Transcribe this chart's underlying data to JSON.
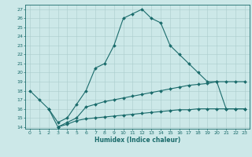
{
  "title": "",
  "xlabel": "Humidex (Indice chaleur)",
  "background_color": "#cce8e8",
  "grid_color": "#aacccc",
  "line_color": "#1a6b6b",
  "xlim": [
    -0.5,
    23.5
  ],
  "ylim": [
    13.8,
    27.5
  ],
  "yticks": [
    14,
    15,
    16,
    17,
    18,
    19,
    20,
    21,
    22,
    23,
    24,
    25,
    26,
    27
  ],
  "xticks": [
    0,
    1,
    2,
    3,
    4,
    5,
    6,
    7,
    8,
    9,
    10,
    11,
    12,
    13,
    14,
    15,
    16,
    17,
    18,
    19,
    20,
    21,
    22,
    23
  ],
  "curve1_x": [
    0,
    1,
    2,
    3,
    4,
    5,
    6,
    7,
    8,
    9,
    10,
    11,
    12,
    13,
    14,
    15,
    16,
    17,
    18,
    19,
    20,
    21,
    22,
    23
  ],
  "curve1_y": [
    18,
    17,
    16,
    14.5,
    15,
    16.5,
    18,
    20.5,
    21,
    23,
    26,
    26.5,
    27,
    26,
    25.5,
    23,
    22,
    21,
    20,
    19,
    19,
    16,
    16,
    16
  ],
  "curve2_x": [
    2,
    3,
    4,
    5,
    6,
    7,
    8,
    9,
    10,
    11,
    12,
    13,
    14,
    15,
    16,
    17,
    18,
    19,
    20,
    21,
    22,
    23
  ],
  "curve2_y": [
    16,
    14,
    14.5,
    15,
    16.2,
    16.5,
    16.8,
    17.0,
    17.2,
    17.4,
    17.6,
    17.8,
    18.0,
    18.2,
    18.4,
    18.6,
    18.7,
    18.8,
    19.0,
    19.0,
    19.0,
    19.0
  ],
  "curve3_x": [
    3,
    4,
    5,
    6,
    7,
    8,
    9,
    10,
    11,
    12,
    13,
    14,
    15,
    16,
    17,
    18,
    19,
    20,
    21,
    22,
    23
  ],
  "curve3_y": [
    14,
    14.3,
    14.7,
    14.9,
    15.0,
    15.1,
    15.2,
    15.3,
    15.4,
    15.5,
    15.6,
    15.7,
    15.8,
    15.9,
    15.9,
    16.0,
    16.0,
    16.0,
    16.0,
    16.0,
    16.0
  ]
}
